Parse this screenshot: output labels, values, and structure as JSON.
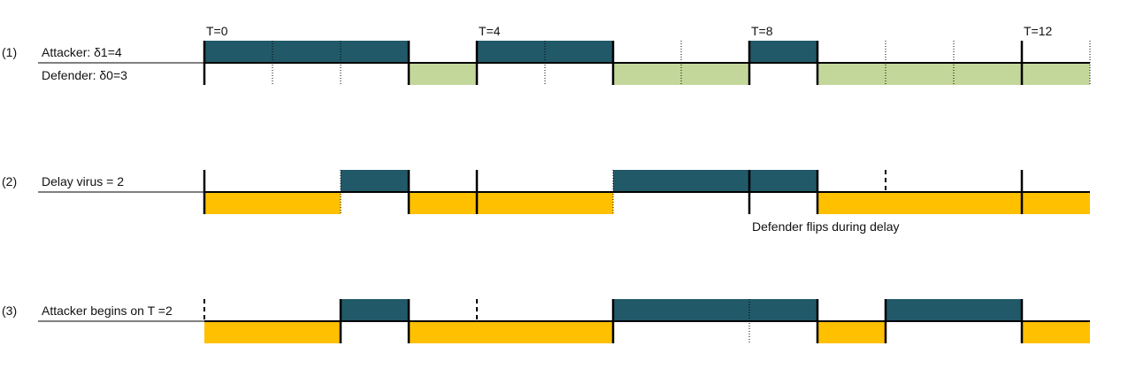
{
  "colors": {
    "attacker": "#215968",
    "defender_green": "#c4d79b",
    "defender_orange": "#ffc000",
    "line": "#000000"
  },
  "time_labels": [
    {
      "t": 0,
      "text": "T=0"
    },
    {
      "t": 4,
      "text": "T=4"
    },
    {
      "t": 8,
      "text": "T=8"
    },
    {
      "t": 12,
      "text": "T=12"
    }
  ],
  "rows": [
    {
      "id": "1",
      "number": "(1)",
      "top_label": "Attacker: δ1=4",
      "bottom_label": "Defender: δ0=3",
      "attacker_segments": [
        [
          0,
          3
        ],
        [
          4,
          6
        ],
        [
          8,
          9
        ]
      ],
      "defender_segments": [
        [
          3,
          4
        ],
        [
          6,
          8
        ],
        [
          9,
          13
        ]
      ],
      "defender_color": "green",
      "solid_ticks": [
        0,
        3,
        4,
        6,
        8,
        9,
        12
      ],
      "dotted_ticks": [
        1,
        2,
        5,
        7,
        10,
        11,
        13
      ]
    },
    {
      "id": "2",
      "number": "(2)",
      "top_label": "Delay virus = 2",
      "bottom_label": "",
      "attacker_segments": [
        [
          2,
          3
        ],
        [
          6,
          9
        ]
      ],
      "defender_segments": [
        [
          0,
          2
        ],
        [
          3,
          6
        ],
        [
          9,
          13
        ]
      ],
      "defender_color": "orange",
      "solid_ticks": [
        0,
        3,
        4,
        8,
        9,
        12
      ],
      "dotted_ticks": [
        2,
        6
      ],
      "dashed_ticks": [
        10
      ],
      "annotation": "Defender flips during delay"
    },
    {
      "id": "3",
      "number": "(3)",
      "top_label": "Attacker begins on T =2",
      "bottom_label": "",
      "attacker_segments": [
        [
          2,
          3
        ],
        [
          6,
          9
        ],
        [
          10,
          12
        ]
      ],
      "defender_segments": [
        [
          0,
          2
        ],
        [
          3,
          6
        ],
        [
          9,
          10
        ],
        [
          12,
          13
        ]
      ],
      "defender_color": "orange",
      "solid_ticks": [
        2,
        3,
        6,
        9,
        10,
        12
      ],
      "dotted_ticks": [
        8
      ],
      "dashed_ticks": [
        0,
        4
      ]
    }
  ]
}
